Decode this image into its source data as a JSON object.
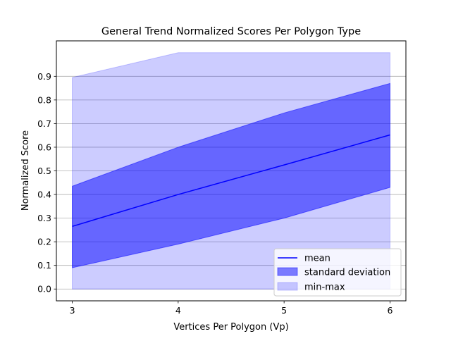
{
  "chart_data": {
    "type": "area",
    "title": "General Trend Normalized Scores Per Polygon Type",
    "xlabel": "Vertices Per Polygon (Vp)",
    "ylabel": "Normalized Score",
    "x": [
      3,
      4,
      5,
      6
    ],
    "xlim": [
      2.85,
      6.15
    ],
    "ylim": [
      -0.05,
      1.05
    ],
    "xticks": [
      3,
      4,
      5,
      6
    ],
    "xtick_labels": [
      "3",
      "4",
      "5",
      "6"
    ],
    "yticks": [
      0.0,
      0.1,
      0.2,
      0.3,
      0.4,
      0.5,
      0.6,
      0.7,
      0.8,
      0.9
    ],
    "ytick_labels": [
      "0.0",
      "0.1",
      "0.2",
      "0.3",
      "0.4",
      "0.5",
      "0.6",
      "0.7",
      "0.8",
      "0.9"
    ],
    "grid": "horizontal",
    "legend_position": "bottom-right",
    "series": [
      {
        "name": "mean",
        "kind": "line",
        "color": "#0000ff",
        "values": [
          0.265,
          0.4,
          0.525,
          0.652
        ]
      },
      {
        "name": "standard deviation",
        "kind": "band",
        "color": "#0000ff",
        "opacity": 0.5,
        "lower": [
          0.09,
          0.19,
          0.3,
          0.43
        ],
        "upper": [
          0.435,
          0.6,
          0.745,
          0.87
        ]
      },
      {
        "name": "min-max",
        "kind": "band",
        "color": "#0000ff",
        "opacity": 0.2,
        "lower": [
          0.0,
          0.0,
          0.0,
          0.0
        ],
        "upper": [
          0.895,
          1.0,
          1.0,
          1.0
        ]
      }
    ]
  }
}
